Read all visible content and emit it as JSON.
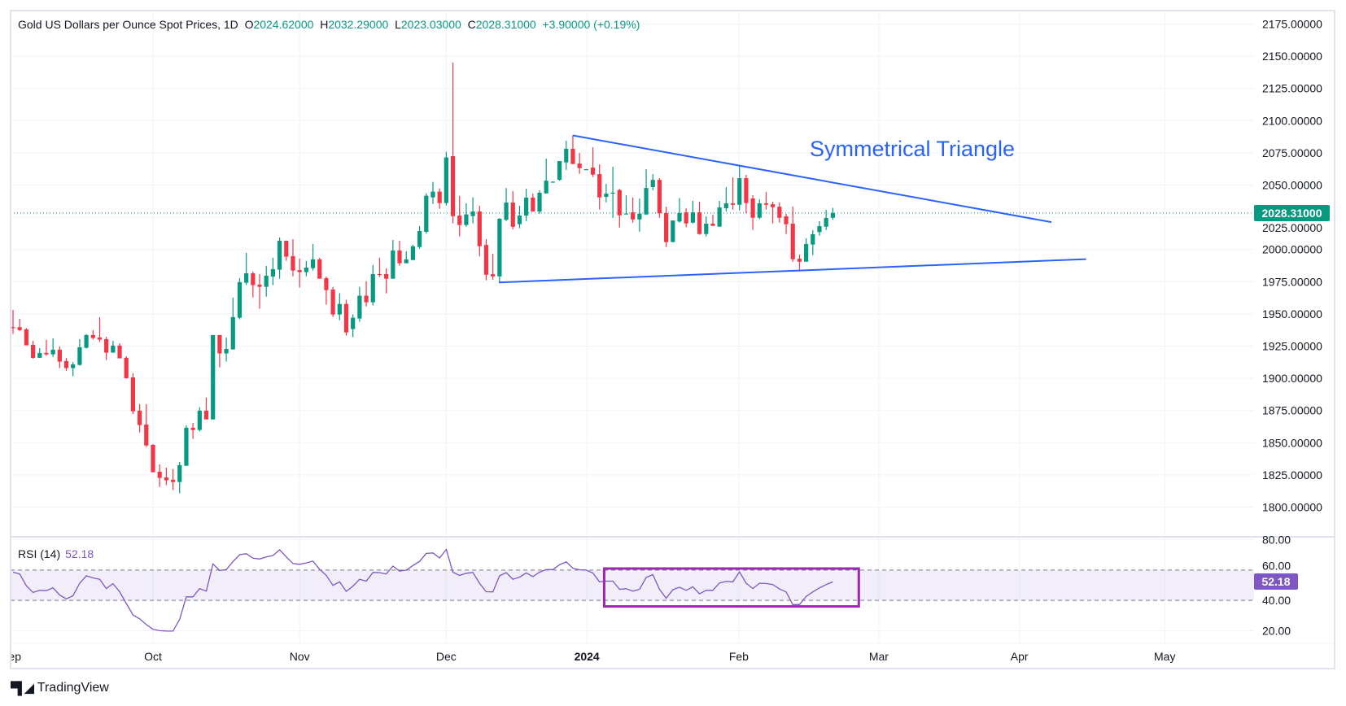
{
  "legend": {
    "symbol": "Gold US Dollars per Ounce Spot Prices, 1D",
    "o_label": "O",
    "o": "2024.62000",
    "h_label": "H",
    "h": "2032.29000",
    "l_label": "L",
    "l": "2023.03000",
    "c_label": "C",
    "c": "2028.31000",
    "change": "+3.90000 (+0.19%)"
  },
  "annotation": "Symmetrical Triangle",
  "last_price_label": "2028.31000",
  "rsi_legend": {
    "name": "RSI (14)",
    "value": "52.18"
  },
  "rsi_last_label": "52.18",
  "brand": "TradingView",
  "colors": {
    "up": "#089981",
    "down": "#f23645",
    "trendline": "#2962ff",
    "rsi": "#7e57c2",
    "highlight_box": "#9c27b0"
  },
  "chart_data": {
    "type": "candlestick",
    "title": "Gold US Dollars per Ounce Spot Prices, 1D",
    "price_axis": {
      "range": [
        1775,
        2175
      ],
      "ticks": [
        "2175.00000",
        "2150.00000",
        "2125.00000",
        "2100.00000",
        "2075.00000",
        "2050.00000",
        "2025.00000",
        "2000.00000",
        "1975.00000",
        "1950.00000",
        "1925.00000",
        "1900.00000",
        "1875.00000",
        "1850.00000",
        "1825.00000",
        "1800.00000"
      ],
      "tick_values": [
        2175,
        2150,
        2125,
        2100,
        2075,
        2050,
        2025,
        2000,
        1975,
        1950,
        1925,
        1900,
        1875,
        1850,
        1825,
        1800
      ]
    },
    "time_axis": [
      {
        "label": "Sep",
        "bar": -0.3
      },
      {
        "label": "Oct",
        "bar": 21
      },
      {
        "label": "Nov",
        "bar": 43
      },
      {
        "label": "Dec",
        "bar": 65
      },
      {
        "label": "2024",
        "bar": 86.1
      },
      {
        "label": "Feb",
        "bar": 108.9
      },
      {
        "label": "Mar",
        "bar": 129.9
      },
      {
        "label": "Apr",
        "bar": 151
      },
      {
        "label": "May",
        "bar": 172.8
      }
    ],
    "last_close": 2028.31,
    "ohlc": [
      [
        1939.7,
        1953.1,
        1934.4,
        1939.6
      ],
      [
        1939.7,
        1946.2,
        1936.7,
        1937.4
      ],
      [
        1938.0,
        1939.0,
        1925.6,
        1925.6
      ],
      [
        1926.0,
        1929.1,
        1915.2,
        1915.9
      ],
      [
        1915.9,
        1923.5,
        1915.9,
        1919.7
      ],
      [
        1919.7,
        1929.8,
        1917.4,
        1918.6
      ],
      [
        1918.6,
        1931.0,
        1916.7,
        1922.2
      ],
      [
        1922.2,
        1924.7,
        1907.9,
        1912.9
      ],
      [
        1913.4,
        1915.9,
        1905.8,
        1907.9
      ],
      [
        1907.9,
        1912.7,
        1901.6,
        1910.8
      ],
      [
        1910.4,
        1930.4,
        1909.8,
        1924.1
      ],
      [
        1923.7,
        1934.2,
        1923.1,
        1933.6
      ],
      [
        1933.6,
        1937.4,
        1930.0,
        1931.3
      ],
      [
        1931.7,
        1947.5,
        1928.1,
        1930.0
      ],
      [
        1930.4,
        1932.3,
        1914.2,
        1919.9
      ],
      [
        1919.9,
        1929.1,
        1919.9,
        1925.4
      ],
      [
        1925.4,
        1927.2,
        1915.5,
        1915.5
      ],
      [
        1915.9,
        1917.1,
        1899.7,
        1900.1
      ],
      [
        1900.7,
        1903.9,
        1872.3,
        1874.4
      ],
      [
        1874.9,
        1879.9,
        1858.0,
        1863.7
      ],
      [
        1864.1,
        1879.9,
        1846.7,
        1847.9
      ],
      [
        1848.3,
        1849.0,
        1827.1,
        1827.1
      ],
      [
        1827.5,
        1833.2,
        1815.7,
        1822.7
      ],
      [
        1823.1,
        1830.7,
        1817.0,
        1820.8
      ],
      [
        1821.2,
        1829.4,
        1813.2,
        1819.5
      ],
      [
        1819.5,
        1835.1,
        1810.7,
        1832.6
      ],
      [
        1832.1,
        1863.5,
        1832.1,
        1861.6
      ],
      [
        1861.6,
        1865.4,
        1853.0,
        1859.9
      ],
      [
        1859.9,
        1877.4,
        1858.7,
        1874.9
      ],
      [
        1874.9,
        1885.0,
        1868.1,
        1868.1
      ],
      [
        1868.1,
        1933.6,
        1868.1,
        1933.6
      ],
      [
        1933.6,
        1933.6,
        1908.5,
        1919.3
      ],
      [
        1919.3,
        1931.7,
        1913.0,
        1922.8
      ],
      [
        1922.4,
        1962.6,
        1922.4,
        1947.5
      ],
      [
        1947.0,
        1977.8,
        1945.8,
        1974.6
      ],
      [
        1974.2,
        1997.3,
        1972.3,
        1981.5
      ],
      [
        1981.5,
        1982.8,
        1962.8,
        1972.3
      ],
      [
        1972.7,
        1980.9,
        1954.0,
        1971.0
      ],
      [
        1971.0,
        1987.2,
        1963.4,
        1979.6
      ],
      [
        1979.0,
        1993.5,
        1972.3,
        1984.7
      ],
      [
        1984.3,
        2009.3,
        1977.3,
        2006.8
      ],
      [
        2006.8,
        2006.8,
        1991.2,
        1994.4
      ],
      [
        1994.8,
        2008.0,
        1979.2,
        1983.6
      ],
      [
        1984.0,
        1992.9,
        1970.4,
        1982.4
      ],
      [
        1982.4,
        1991.0,
        1979.2,
        1985.9
      ],
      [
        1985.5,
        2004.2,
        1983.6,
        1992.3
      ],
      [
        1992.3,
        1993.5,
        1977.3,
        1977.3
      ],
      [
        1977.7,
        1979.0,
        1957.1,
        1968.5
      ],
      [
        1968.9,
        1970.8,
        1947.6,
        1949.5
      ],
      [
        1949.5,
        1966.0,
        1945.1,
        1957.7
      ],
      [
        1957.7,
        1960.9,
        1933.1,
        1935.6
      ],
      [
        1938.2,
        1949.5,
        1931.9,
        1947.0
      ],
      [
        1946.4,
        1971.0,
        1943.9,
        1964.1
      ],
      [
        1964.1,
        1975.4,
        1955.8,
        1959.0
      ],
      [
        1959.0,
        1988.0,
        1956.5,
        1980.9
      ],
      [
        1980.9,
        1993.5,
        1978.6,
        1980.4
      ],
      [
        1980.9,
        1985.3,
        1965.9,
        1977.3
      ],
      [
        1977.3,
        2007.4,
        1977.3,
        1999.2
      ],
      [
        1999.2,
        2006.8,
        1987.4,
        1989.3
      ],
      [
        1989.3,
        1998.6,
        1989.3,
        1992.3
      ],
      [
        1991.8,
        2003.6,
        1991.8,
        2002.4
      ],
      [
        2001.9,
        2018.1,
        2000.7,
        2014.3
      ],
      [
        2013.7,
        2043.6,
        2012.2,
        2041.7
      ],
      [
        2040.4,
        2052.4,
        2035.4,
        2044.9
      ],
      [
        2044.9,
        2047.4,
        2031.6,
        2036.0
      ],
      [
        2036.0,
        2075.8,
        2034.1,
        2071.4
      ],
      [
        2072.4,
        2145.0,
        2020.2,
        2025.9
      ],
      [
        2026.3,
        2041.5,
        2010.1,
        2019.0
      ],
      [
        2019.0,
        2035.8,
        2017.7,
        2027.2
      ],
      [
        2025.9,
        2040.4,
        2020.2,
        2029.5
      ],
      [
        2029.5,
        2033.9,
        1994.7,
        2002.5
      ],
      [
        2003.5,
        2008.0,
        1976.0,
        1980.4
      ],
      [
        1980.8,
        1996.6,
        1976.6,
        1979.1
      ],
      [
        1979.1,
        2024.4,
        1974.1,
        2023.8
      ],
      [
        2023.0,
        2047.7,
        2022.1,
        2036.4
      ],
      [
        2036.4,
        2045.2,
        2015.7,
        2017.6
      ],
      [
        2019.6,
        2033.9,
        2016.4,
        2026.3
      ],
      [
        2026.3,
        2047.1,
        2022.1,
        2040.2
      ],
      [
        2040.2,
        2043.3,
        2029.4,
        2029.4
      ],
      [
        2029.4,
        2045.9,
        2027.5,
        2044.0
      ],
      [
        2043.5,
        2070.5,
        2043.5,
        2053.4
      ],
      [
        2052.4,
        2052.8,
        2052.4,
        2052.6
      ],
      [
        2054.0,
        2068.6,
        2053.4,
        2068.6
      ],
      [
        2067.6,
        2084.4,
        2061.8,
        2078.1
      ],
      [
        2078.1,
        2088.8,
        2066.3,
        2066.3
      ],
      [
        2066.7,
        2074.9,
        2058.7,
        2063.1
      ],
      [
        2062.2,
        2062.5,
        2062.2,
        2062.3
      ],
      [
        2063.5,
        2079.3,
        2056.2,
        2058.1
      ],
      [
        2058.5,
        2066.0,
        2030.9,
        2040.4
      ],
      [
        2040.8,
        2050.9,
        2036.6,
        2043.3
      ],
      [
        2044.0,
        2064.2,
        2024.6,
        2044.1
      ],
      [
        2046.1,
        2047.0,
        2017.0,
        2026.5
      ],
      [
        2027.4,
        2042.0,
        2027.4,
        2027.9
      ],
      [
        2028.8,
        2040.2,
        2020.8,
        2023.3
      ],
      [
        2023.3,
        2039.5,
        2013.9,
        2027.8
      ],
      [
        2027.1,
        2062.3,
        2027.1,
        2047.7
      ],
      [
        2048.4,
        2058.5,
        2045.9,
        2054.0
      ],
      [
        2054.0,
        2055.3,
        2024.6,
        2028.0
      ],
      [
        2028.2,
        2033.2,
        2001.9,
        2005.7
      ],
      [
        2005.7,
        2022.5,
        2005.7,
        2022.5
      ],
      [
        2021.7,
        2040.0,
        2020.8,
        2028.2
      ],
      [
        2028.8,
        2032.0,
        2017.3,
        2020.2
      ],
      [
        2020.8,
        2037.7,
        2020.2,
        2028.8
      ],
      [
        2028.8,
        2037.0,
        2011.4,
        2012.0
      ],
      [
        2012.0,
        2025.7,
        2010.1,
        2020.0
      ],
      [
        2020.0,
        2026.9,
        2018.3,
        2018.3
      ],
      [
        2017.7,
        2037.7,
        2017.7,
        2032.6
      ],
      [
        2032.0,
        2048.4,
        2029.5,
        2035.8
      ],
      [
        2035.8,
        2056.0,
        2030.9,
        2034.7
      ],
      [
        2034.7,
        2065.4,
        2030.3,
        2055.3
      ],
      [
        2055.3,
        2057.9,
        2028.2,
        2036.0
      ],
      [
        2039.6,
        2042.1,
        2015.1,
        2024.6
      ],
      [
        2024.6,
        2038.9,
        2023.4,
        2035.8
      ],
      [
        2035.8,
        2044.6,
        2030.9,
        2034.7
      ],
      [
        2035.1,
        2037.0,
        2020.2,
        2032.8
      ],
      [
        2033.2,
        2036.6,
        2020.8,
        2024.6
      ],
      [
        2025.7,
        2027.6,
        2012.0,
        2019.6
      ],
      [
        2020.0,
        2033.2,
        1990.5,
        1992.4
      ],
      [
        1992.8,
        1996.0,
        1984.2,
        1990.5
      ],
      [
        1990.5,
        2008.6,
        1990.5,
        2004.2
      ],
      [
        2003.8,
        2015.0,
        1995.6,
        2011.8
      ],
      [
        2013.5,
        2021.9,
        2010.7,
        2018.1
      ],
      [
        2017.7,
        2030.7,
        2015.1,
        2024.4
      ],
      [
        2024.62,
        2032.29,
        2023.03,
        2028.31
      ]
    ],
    "trendlines": [
      {
        "name": "upper",
        "from": {
          "bar": 84,
          "price": 2088.5
        },
        "to": {
          "bar": 155.8,
          "price": 2021.2
        }
      },
      {
        "name": "lower",
        "from": {
          "bar": 72.9,
          "price": 1974.4
        },
        "to": {
          "bar": 161,
          "price": 1992.5
        }
      }
    ],
    "rsi": {
      "period": 14,
      "range": [
        10,
        82
      ],
      "ticks": [
        "80.00",
        "60.00",
        "40.00",
        "20.00"
      ],
      "tick_values": [
        80,
        60,
        40,
        20
      ],
      "band": [
        40,
        60
      ],
      "highlight_box": {
        "from_bar": 88.7,
        "to_bar": 126.9,
        "from_value": 36,
        "to_value": 61
      },
      "values": [
        58.6,
        57.4,
        49.6,
        45.2,
        46.6,
        46.4,
        48.3,
        43.5,
        41.0,
        43.0,
        51.3,
        56.2,
        54.8,
        53.9,
        47.8,
        51.0,
        45.7,
        37.9,
        30.4,
        27.8,
        24.0,
        20.9,
        20.0,
        19.8,
        19.7,
        27.5,
        42.3,
        42.3,
        47.8,
        46.1,
        64.0,
        59.7,
        60.3,
        65.6,
        70.1,
        70.8,
        67.8,
        67.3,
        68.7,
        69.6,
        73.4,
        68.7,
        64.3,
        63.8,
        64.7,
        65.9,
        60.5,
        56.5,
        49.9,
        52.2,
        45.9,
        49.4,
        53.9,
        52.7,
        58.4,
        58.3,
        57.4,
        62.6,
        59.3,
        60.0,
        63.0,
        65.7,
        71.0,
        71.3,
        68.0,
        73.6,
        58.6,
        56.5,
        57.9,
        58.4,
        51.3,
        45.7,
        45.6,
        56.2,
        58.3,
        53.9,
        55.3,
        58.1,
        55.7,
        58.6,
        60.3,
        60.3,
        63.5,
        65.4,
        61.2,
        60.2,
        60.0,
        58.1,
        52.2,
        52.7,
        52.7,
        47.3,
        47.7,
        46.1,
        47.3,
        55.1,
        57.0,
        47.3,
        41.4,
        47.0,
        48.7,
        46.6,
        49.0,
        44.3,
        46.6,
        46.6,
        51.5,
        52.5,
        52.2,
        58.8,
        51.3,
        47.8,
        51.3,
        51.1,
        50.4,
        47.5,
        45.6,
        37.2,
        37.2,
        42.6,
        45.6,
        48.2,
        50.4,
        52.18
      ]
    }
  }
}
